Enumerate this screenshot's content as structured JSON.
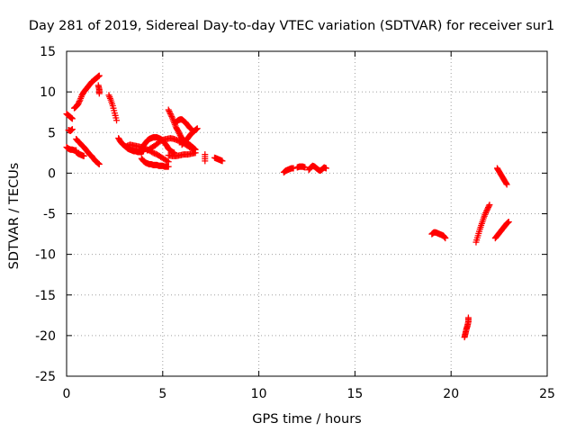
{
  "chart_data": {
    "type": "scatter",
    "title": "Day 281 of 2019, Sidereal Day-to-day VTEC variation (SDTVAR) for receiver sur1",
    "xlabel": "GPS time / hours",
    "ylabel": "SDTVAR / TECUs",
    "xlim": [
      0,
      25
    ],
    "ylim": [
      -25,
      15
    ],
    "x_ticks": [
      0,
      5,
      10,
      15,
      20,
      25
    ],
    "y_ticks": [
      -25,
      -20,
      -15,
      -10,
      -5,
      0,
      5,
      10,
      15
    ],
    "grid": true,
    "marker": "+",
    "color": "#ff0000",
    "segments": [
      {
        "x": [
          0.0,
          0.1,
          0.2,
          0.3
        ],
        "y": [
          7.3,
          7.1,
          6.9,
          6.7
        ]
      },
      {
        "x": [
          0.1,
          0.2,
          0.3
        ],
        "y": [
          5.3,
          5.2,
          5.4
        ]
      },
      {
        "x": [
          0.0,
          0.1,
          0.2,
          0.3,
          0.4,
          0.5
        ],
        "y": [
          3.2,
          3.0,
          2.9,
          2.9,
          2.8,
          2.8
        ]
      },
      {
        "x": [
          0.5,
          0.6,
          0.7,
          0.8,
          0.9
        ],
        "y": [
          2.6,
          2.4,
          2.3,
          2.2,
          2.1
        ]
      },
      {
        "x": [
          0.5,
          0.6,
          0.7,
          0.8,
          0.9,
          1.0,
          1.1,
          1.2,
          1.3,
          1.4,
          1.5,
          1.6,
          1.7
        ],
        "y": [
          4.2,
          3.9,
          3.7,
          3.4,
          3.2,
          2.9,
          2.6,
          2.3,
          2.1,
          1.8,
          1.5,
          1.3,
          1.1
        ]
      },
      {
        "x": [
          0.4,
          0.5,
          0.6,
          0.7,
          0.8,
          0.9,
          1.0,
          1.1,
          1.2,
          1.3,
          1.4,
          1.5,
          1.6,
          1.7
        ],
        "y": [
          8.0,
          8.2,
          8.5,
          9.0,
          9.6,
          10.0,
          10.3,
          10.6,
          10.9,
          11.2,
          11.4,
          11.6,
          11.8,
          12.0
        ]
      },
      {
        "x": [
          1.65,
          1.7,
          1.7
        ],
        "y": [
          10.8,
          10.3,
          9.8
        ]
      },
      {
        "x": [
          2.2,
          2.3,
          2.4,
          2.5,
          2.6
        ],
        "y": [
          9.6,
          9.0,
          8.3,
          7.4,
          6.5
        ]
      },
      {
        "x": [
          2.7,
          2.8,
          2.9,
          3.0,
          3.1,
          3.2,
          3.3,
          3.4,
          3.5,
          3.6,
          3.7,
          3.8,
          3.9,
          4.0
        ],
        "y": [
          4.3,
          3.9,
          3.6,
          3.4,
          3.2,
          3.0,
          2.9,
          2.8,
          2.7,
          2.7,
          2.6,
          2.6,
          2.6,
          2.7
        ]
      },
      {
        "x": [
          3.1,
          3.3,
          3.5,
          3.7,
          3.9,
          4.1,
          4.3,
          4.5,
          4.7,
          4.9,
          5.1,
          5.3
        ],
        "y": [
          3.3,
          3.5,
          3.4,
          3.3,
          3.2,
          3.0,
          2.8,
          2.5,
          2.3,
          2.0,
          1.7,
          1.4
        ]
      },
      {
        "x": [
          3.9,
          4.0,
          4.1,
          4.2,
          4.3,
          4.4,
          4.5,
          4.6,
          4.7,
          4.8,
          4.9,
          5.0,
          5.1,
          5.2,
          5.3
        ],
        "y": [
          1.8,
          1.5,
          1.3,
          1.2,
          1.1,
          1.1,
          1.0,
          1.0,
          1.0,
          0.9,
          0.9,
          0.9,
          0.8,
          0.8,
          0.8
        ]
      },
      {
        "x": [
          3.9,
          4.0,
          4.1,
          4.2,
          4.3,
          4.4,
          4.5,
          4.6,
          4.7,
          4.8,
          4.9,
          5.0,
          5.1,
          5.2,
          5.3,
          5.4,
          5.5,
          5.6
        ],
        "y": [
          3.0,
          3.4,
          3.7,
          4.0,
          4.2,
          4.3,
          4.4,
          4.4,
          4.4,
          4.3,
          4.2,
          4.0,
          3.7,
          3.4,
          3.0,
          2.8,
          2.6,
          2.5
        ]
      },
      {
        "x": [
          4.2,
          4.4,
          4.6,
          4.8,
          5.0,
          5.2,
          5.4,
          5.6,
          5.8,
          6.0,
          6.2,
          6.4,
          6.6
        ],
        "y": [
          2.8,
          3.1,
          3.4,
          3.8,
          4.1,
          4.2,
          4.3,
          4.2,
          4.0,
          3.8,
          3.5,
          3.2,
          2.9
        ]
      },
      {
        "x": [
          5.3,
          5.4,
          5.5,
          5.6,
          5.7,
          5.8,
          5.9,
          6.0,
          6.1,
          6.2,
          6.3,
          6.4,
          6.5,
          6.6,
          6.7
        ],
        "y": [
          7.8,
          7.3,
          6.8,
          6.2,
          5.6,
          5.2,
          4.7,
          4.3,
          4.0,
          3.8,
          3.6,
          3.5,
          3.3,
          3.1,
          2.9
        ]
      },
      {
        "x": [
          5.7,
          5.8,
          5.9,
          6.0,
          6.1,
          6.2,
          6.3,
          6.4,
          6.5
        ],
        "y": [
          6.3,
          6.5,
          6.6,
          6.6,
          6.4,
          6.2,
          5.9,
          5.6,
          5.4
        ]
      },
      {
        "x": [
          5.3,
          5.5,
          5.7,
          5.9,
          6.1,
          6.3,
          6.5,
          6.7
        ],
        "y": [
          2.2,
          2.1,
          2.1,
          2.2,
          2.3,
          2.3,
          2.4,
          2.5
        ]
      },
      {
        "x": [
          6.0,
          6.1,
          6.2,
          6.3,
          6.4,
          6.5,
          6.6,
          6.7,
          6.8
        ],
        "y": [
          3.5,
          3.8,
          4.0,
          4.3,
          4.6,
          4.9,
          5.1,
          5.3,
          5.5
        ]
      },
      {
        "x": [
          7.2,
          7.2
        ],
        "y": [
          2.3,
          1.5
        ]
      },
      {
        "x": [
          7.7,
          7.8,
          7.9,
          8.0,
          8.1
        ],
        "y": [
          1.9,
          1.8,
          1.7,
          1.6,
          1.5
        ]
      },
      {
        "x": [
          11.3,
          11.4,
          11.5,
          11.6,
          11.7,
          11.8
        ],
        "y": [
          0.1,
          0.3,
          0.4,
          0.5,
          0.6,
          0.6
        ]
      },
      {
        "x": [
          12.0,
          12.1,
          12.2,
          12.3,
          12.4
        ],
        "y": [
          0.7,
          0.8,
          0.8,
          0.8,
          0.7
        ]
      },
      {
        "x": [
          12.6,
          12.7,
          12.8,
          12.9,
          13.0,
          13.1,
          13.2,
          13.3,
          13.4,
          13.5
        ],
        "y": [
          0.4,
          0.7,
          0.9,
          0.8,
          0.6,
          0.4,
          0.3,
          0.5,
          0.7,
          0.6
        ]
      },
      {
        "x": [
          19.0,
          19.1,
          19.2,
          19.3,
          19.4,
          19.5,
          19.6,
          19.7
        ],
        "y": [
          -7.5,
          -7.3,
          -7.3,
          -7.4,
          -7.5,
          -7.6,
          -7.7,
          -8.0
        ]
      },
      {
        "x": [
          20.7,
          20.75,
          20.8,
          20.85,
          20.9,
          20.9
        ],
        "y": [
          -20.2,
          -19.7,
          -19.2,
          -18.8,
          -18.3,
          -17.8
        ]
      },
      {
        "x": [
          21.3,
          21.4,
          21.5,
          21.6,
          21.7,
          21.8,
          21.9,
          22.0
        ],
        "y": [
          -8.5,
          -7.7,
          -6.9,
          -6.2,
          -5.5,
          -4.9,
          -4.4,
          -3.9
        ]
      },
      {
        "x": [
          22.3,
          22.4,
          22.5,
          22.6,
          22.7,
          22.8,
          22.9,
          23.0
        ],
        "y": [
          -8.0,
          -7.7,
          -7.4,
          -7.1,
          -6.8,
          -6.5,
          -6.2,
          -6.0
        ]
      },
      {
        "x": [
          22.4,
          22.5,
          22.6,
          22.7,
          22.8,
          22.9
        ],
        "y": [
          0.6,
          0.2,
          -0.2,
          -0.6,
          -1.0,
          -1.4
        ]
      }
    ]
  }
}
